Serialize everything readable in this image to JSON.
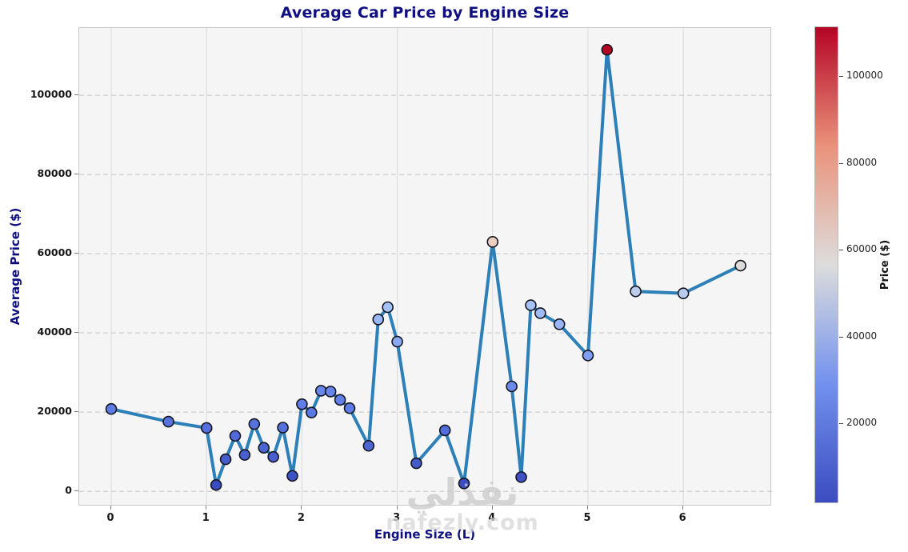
{
  "title": "Average Car Price by Engine Size",
  "watermark": {
    "arabic": "نفذلي",
    "domain": "nafezly.com"
  },
  "chart_data": {
    "type": "line",
    "title": "Average Car Price by Engine Size",
    "xlabel": "Engine Size (L)",
    "ylabel": "Average Price ($)",
    "x": [
      0.0,
      0.6,
      1.0,
      1.1,
      1.2,
      1.3,
      1.4,
      1.5,
      1.6,
      1.7,
      1.8,
      1.9,
      2.0,
      2.1,
      2.2,
      2.3,
      2.4,
      2.5,
      2.7,
      2.8,
      2.9,
      3.0,
      3.2,
      3.5,
      3.7,
      4.0,
      4.2,
      4.3,
      4.4,
      4.5,
      4.7,
      5.0,
      5.2,
      5.5,
      6.0,
      6.6
    ],
    "y": [
      20800,
      17600,
      16000,
      1600,
      8100,
      14000,
      9200,
      17000,
      11000,
      8700,
      16100,
      3900,
      22000,
      19900,
      25400,
      25200,
      23100,
      21000,
      11500,
      43400,
      46500,
      37800,
      7100,
      15400,
      2000,
      63000,
      26500,
      3600,
      47000,
      45000,
      42200,
      34300,
      111500,
      50500,
      50000,
      57000
    ],
    "x_ticks": [
      0,
      1,
      2,
      3,
      4,
      5,
      6
    ],
    "y_ticks": [
      0,
      20000,
      40000,
      60000,
      80000,
      100000
    ],
    "xlim": [
      -0.336,
      6.93
    ],
    "ylim": [
      -3800,
      117000
    ],
    "grid": true,
    "legend": "none",
    "line_color": "#2d7fb8",
    "marker_edge_color": "#15151f",
    "marker_colormap": "coolwarm",
    "colorbar": {
      "label": "Price ($)",
      "ticks": [
        20000,
        40000,
        60000,
        80000,
        100000
      ],
      "vmin": 1600,
      "vmax": 111500,
      "position": "right"
    },
    "colors": {
      "title": "#0f0f80",
      "axis_label": "#0f0f80",
      "tick_label": "#161616",
      "plot_bg": "#f5f5f6",
      "figure_bg": "#ffffff",
      "grid_vertical": "#d9d9d9",
      "grid_horizontal": "#c4c4c4"
    }
  }
}
